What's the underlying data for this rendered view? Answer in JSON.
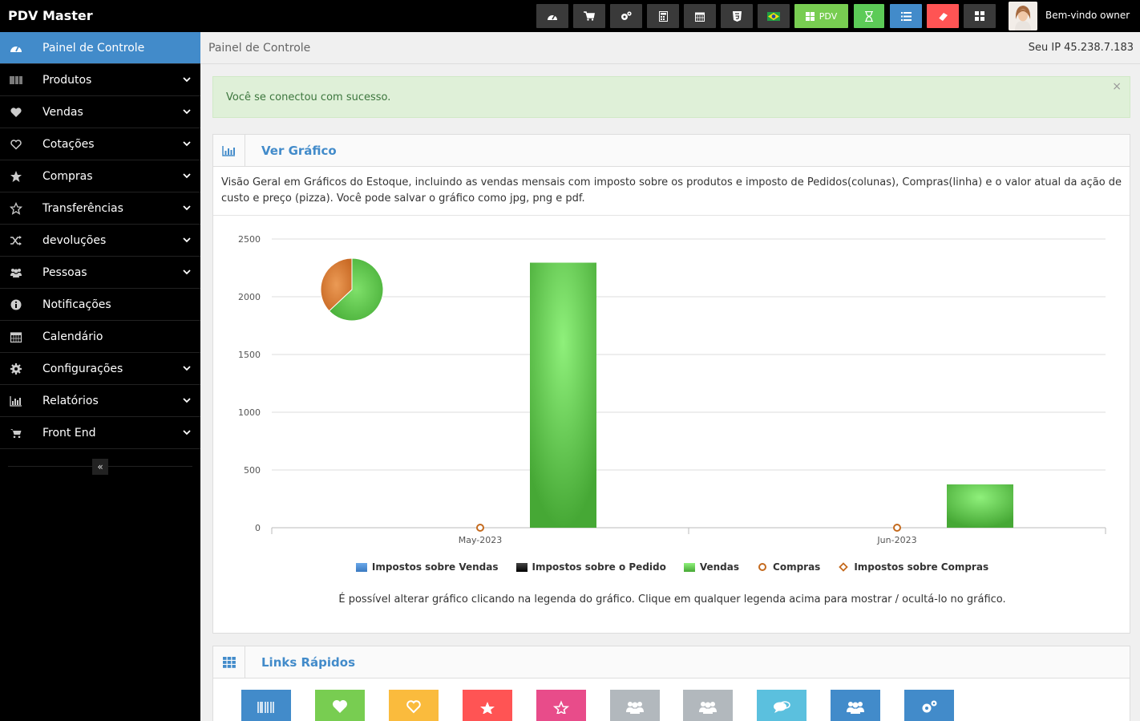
{
  "app": {
    "brand": "PDV Master",
    "welcome": "Bem-vindo owner"
  },
  "topbar": {
    "buttons": [
      {
        "name": "dashboard-icon"
      },
      {
        "name": "cart-icon"
      },
      {
        "name": "cogs-icon"
      },
      {
        "name": "calculator-icon"
      },
      {
        "name": "calendar-icon"
      },
      {
        "name": "html5-icon"
      },
      {
        "name": "brazil-flag-icon"
      },
      {
        "name": "pdv-button",
        "label": "PDV"
      },
      {
        "name": "hourglass-icon"
      },
      {
        "name": "list-icon"
      },
      {
        "name": "eraser-icon"
      },
      {
        "name": "grid-icon"
      }
    ]
  },
  "sidebar": {
    "items": [
      {
        "label": "Painel de Controle",
        "icon": "dashboard-icon",
        "active": true
      },
      {
        "label": "Produtos",
        "icon": "barcode-icon"
      },
      {
        "label": "Vendas",
        "icon": "heart-icon"
      },
      {
        "label": "Cotações",
        "icon": "heart-outline-icon"
      },
      {
        "label": "Compras",
        "icon": "star-icon"
      },
      {
        "label": "Transferências",
        "icon": "star-outline-icon"
      },
      {
        "label": "devoluções",
        "icon": "random-icon"
      },
      {
        "label": "Pessoas",
        "icon": "users-icon"
      },
      {
        "label": "Notificações",
        "icon": "info-icon"
      },
      {
        "label": "Calendário",
        "icon": "calendar-icon"
      },
      {
        "label": "Configurações",
        "icon": "cog-icon"
      },
      {
        "label": "Relatórios",
        "icon": "bar-chart-icon"
      },
      {
        "label": "Front End",
        "icon": "cart-icon"
      }
    ],
    "collapse_symbol": "«"
  },
  "breadcrumb": {
    "title": "Painel de Controle",
    "ip": "Seu IP 45.238.7.183"
  },
  "alert": {
    "text": "Você se conectou com sucesso.",
    "close": "×"
  },
  "chart_box": {
    "title": "Ver Gráfico",
    "description": "Visão Geral em Gráficos do Estoque, incluindo as vendas mensais com imposto sobre os produtos e imposto de Pedidos(colunas), Compras(linha) e o valor atual da ação de custo e preço (pizza). Você pode salvar o gráfico como jpg, png e pdf.",
    "hint": "É possível alterar gráfico clicando na legenda do gráfico. Clique em qualquer legenda acima para mostrar / ocultá-lo no gráfico.",
    "legend": [
      {
        "label": "Impostos sobre Vendas",
        "color": "#4a8fd6",
        "shape": "square"
      },
      {
        "label": "Impostos sobre o Pedido",
        "color": "#111111",
        "shape": "square"
      },
      {
        "label": "Vendas",
        "color": "#5cc04a",
        "shape": "square"
      },
      {
        "label": "Compras",
        "color": "#c46a1e",
        "shape": "circle"
      },
      {
        "label": "Impostos sobre Compras",
        "color": "#c46a1e",
        "shape": "diamond"
      }
    ]
  },
  "chart_data": {
    "type": "bar",
    "categories": [
      "May-2023",
      "Jun-2023"
    ],
    "yticks": [
      0,
      500,
      1000,
      1500,
      2000,
      2500
    ],
    "ylim": [
      0,
      2500
    ],
    "grid": true,
    "series": [
      {
        "name": "Vendas",
        "type": "bar",
        "values": [
          2295,
          375
        ],
        "color": "#5cc04a"
      },
      {
        "name": "Compras",
        "type": "line",
        "values": [
          0,
          0
        ],
        "color": "#c46a1e"
      }
    ],
    "pie": {
      "slices": [
        {
          "value": 63,
          "color": "#5cc04a"
        },
        {
          "value": 37,
          "color": "#d97a34"
        }
      ]
    }
  },
  "quick_links": {
    "title": "Links Rápidos",
    "tiles": [
      {
        "name": "products-link",
        "color": "#428bca",
        "icon": "barcode-icon"
      },
      {
        "name": "sales-link",
        "color": "#78cd51",
        "icon": "heart-icon"
      },
      {
        "name": "quotes-link",
        "color": "#fabb3d",
        "icon": "heart-outline-icon"
      },
      {
        "name": "purchases-link",
        "color": "#ff5454",
        "icon": "star-icon"
      },
      {
        "name": "transfers-link",
        "color": "#e84c8a",
        "icon": "star-outline-icon"
      },
      {
        "name": "customers-link",
        "color": "#b2b8bd",
        "icon": "users-icon"
      },
      {
        "name": "suppliers-link",
        "color": "#b2b8bd",
        "icon": "users-icon"
      },
      {
        "name": "notifications-link",
        "color": "#5bc0de",
        "icon": "comments-icon"
      },
      {
        "name": "users-link",
        "color": "#428bca",
        "icon": "users-icon"
      },
      {
        "name": "settings-link",
        "color": "#428bca",
        "icon": "cogs-icon"
      }
    ]
  }
}
